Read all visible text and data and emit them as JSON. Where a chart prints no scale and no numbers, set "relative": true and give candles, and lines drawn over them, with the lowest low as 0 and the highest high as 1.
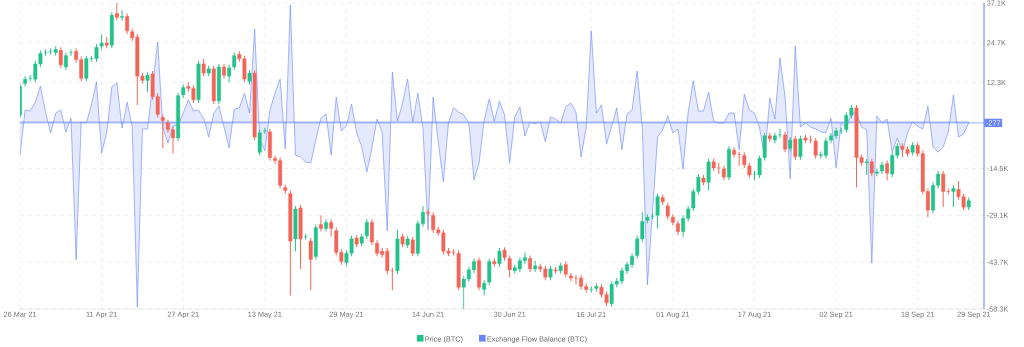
{
  "chart_data": {
    "type": "candlestick",
    "relative": true,
    "grid": true,
    "legend": "bottom",
    "x": [
      "2021-03-26",
      "2021-03-27",
      "2021-03-28",
      "2021-03-29",
      "2021-03-30",
      "2021-03-31",
      "2021-04-01",
      "2021-04-02",
      "2021-04-03",
      "2021-04-04",
      "2021-04-05",
      "2021-04-06",
      "2021-04-07",
      "2021-04-08",
      "2021-04-09",
      "2021-04-10",
      "2021-04-11",
      "2021-04-12",
      "2021-04-13",
      "2021-04-14",
      "2021-04-15",
      "2021-04-16",
      "2021-04-17",
      "2021-04-18",
      "2021-04-19",
      "2021-04-20",
      "2021-04-21",
      "2021-04-22",
      "2021-04-23",
      "2021-04-24",
      "2021-04-25",
      "2021-04-26",
      "2021-04-27",
      "2021-04-28",
      "2021-04-29",
      "2021-04-30",
      "2021-05-01",
      "2021-05-02",
      "2021-05-03",
      "2021-05-04",
      "2021-05-05",
      "2021-05-06",
      "2021-05-07",
      "2021-05-08",
      "2021-05-09",
      "2021-05-10",
      "2021-05-11",
      "2021-05-12",
      "2021-05-13",
      "2021-05-14",
      "2021-05-15",
      "2021-05-16",
      "2021-05-17",
      "2021-05-18",
      "2021-05-19",
      "2021-05-20",
      "2021-05-21",
      "2021-05-22",
      "2021-05-23",
      "2021-05-24",
      "2021-05-25",
      "2021-05-26",
      "2021-05-27",
      "2021-05-28",
      "2021-05-29",
      "2021-05-30",
      "2021-05-31",
      "2021-06-01",
      "2021-06-02",
      "2021-06-03",
      "2021-06-04",
      "2021-06-05",
      "2021-06-06",
      "2021-06-07",
      "2021-06-08",
      "2021-06-09",
      "2021-06-10",
      "2021-06-11",
      "2021-06-12",
      "2021-06-13",
      "2021-06-14",
      "2021-06-15",
      "2021-06-16",
      "2021-06-17",
      "2021-06-18",
      "2021-06-19",
      "2021-06-20",
      "2021-06-21",
      "2021-06-22",
      "2021-06-23",
      "2021-06-24",
      "2021-06-25",
      "2021-06-26",
      "2021-06-27",
      "2021-06-28",
      "2021-06-29",
      "2021-06-30",
      "2021-07-01",
      "2021-07-02",
      "2021-07-03",
      "2021-07-04",
      "2021-07-05",
      "2021-07-06",
      "2021-07-07",
      "2021-07-08",
      "2021-07-09",
      "2021-07-10",
      "2021-07-11",
      "2021-07-12",
      "2021-07-13",
      "2021-07-14",
      "2021-07-15",
      "2021-07-16",
      "2021-07-17",
      "2021-07-18",
      "2021-07-19",
      "2021-07-20",
      "2021-07-21",
      "2021-07-22",
      "2021-07-23",
      "2021-07-24",
      "2021-07-25",
      "2021-07-26",
      "2021-07-27",
      "2021-07-28",
      "2021-07-29",
      "2021-07-30",
      "2021-07-31",
      "2021-08-01",
      "2021-08-02",
      "2021-08-03",
      "2021-08-04",
      "2021-08-05",
      "2021-08-06",
      "2021-08-07",
      "2021-08-08",
      "2021-08-09",
      "2021-08-10",
      "2021-08-11",
      "2021-08-12",
      "2021-08-13",
      "2021-08-14",
      "2021-08-15",
      "2021-08-16",
      "2021-08-17",
      "2021-08-18",
      "2021-08-19",
      "2021-08-20",
      "2021-08-21",
      "2021-08-22",
      "2021-08-23",
      "2021-08-24",
      "2021-08-25",
      "2021-08-26",
      "2021-08-27",
      "2021-08-28",
      "2021-08-29",
      "2021-08-30",
      "2021-08-31",
      "2021-09-01",
      "2021-09-02",
      "2021-09-03",
      "2021-09-04",
      "2021-09-05",
      "2021-09-06",
      "2021-09-07",
      "2021-09-08",
      "2021-09-09",
      "2021-09-10",
      "2021-09-11",
      "2021-09-12",
      "2021-09-13",
      "2021-09-14",
      "2021-09-15",
      "2021-09-16",
      "2021-09-17",
      "2021-09-18",
      "2021-09-19",
      "2021-09-20",
      "2021-09-21",
      "2021-09-22",
      "2021-09-23",
      "2021-09-24",
      "2021-09-25",
      "2021-09-26",
      "2021-09-27",
      "2021-09-28"
    ],
    "xlim": [
      "2021-03-26",
      "2021-10-01"
    ],
    "xticks": [
      {
        "value": "2021-03-26",
        "label": "26 Mar 21"
      },
      {
        "value": "2021-04-11",
        "label": "11 Apr 21"
      },
      {
        "value": "2021-04-27",
        "label": "27 Apr 21"
      },
      {
        "value": "2021-05-13",
        "label": "13 May 21"
      },
      {
        "value": "2021-05-29",
        "label": "29 May 21"
      },
      {
        "value": "2021-06-14",
        "label": "14 Jun 21"
      },
      {
        "value": "2021-06-30",
        "label": "30 Jun 21"
      },
      {
        "value": "2021-07-16",
        "label": "16 Jul 21"
      },
      {
        "value": "2021-08-01",
        "label": "01 Aug 21"
      },
      {
        "value": "2021-08-17",
        "label": "17 Aug 21"
      },
      {
        "value": "2021-09-02",
        "label": "02 Sep 21"
      },
      {
        "value": "2021-09-18",
        "label": "18 Sep 21"
      },
      {
        "value": "2021-09-29",
        "label": "29 Sep 21"
      }
    ],
    "y2lim": [
      -58300,
      37100
    ],
    "y2ticks": [
      {
        "value": 37100,
        "label": "37.1K"
      },
      {
        "value": 24700,
        "label": "24.7K"
      },
      {
        "value": 12300,
        "label": "12.3K"
      },
      {
        "value": -14500,
        "label": "-14.5K"
      },
      {
        "value": -29100,
        "label": "-29.1K"
      },
      {
        "value": -43700,
        "label": "-43.7K"
      },
      {
        "value": -58300,
        "label": "-58.3K"
      }
    ],
    "ref_lines": [
      {
        "axis": "y2",
        "value": -277,
        "label": "-277",
        "color": "#6a86f8"
      }
    ],
    "series": [
      {
        "type": "candlestick",
        "name": "Price (BTC)",
        "color": "#25c28c",
        "ohlc": [
          [
            0.633,
            0.737,
            0.623,
            0.727
          ],
          [
            0.737,
            0.761,
            0.727,
            0.751
          ],
          [
            0.754,
            0.764,
            0.744,
            0.754
          ],
          [
            0.751,
            0.811,
            0.741,
            0.801
          ],
          [
            0.801,
            0.845,
            0.791,
            0.835
          ],
          [
            0.838,
            0.848,
            0.828,
            0.838
          ],
          [
            0.842,
            0.852,
            0.832,
            0.842
          ],
          [
            0.838,
            0.859,
            0.828,
            0.848
          ],
          [
            0.845,
            0.855,
            0.788,
            0.798
          ],
          [
            0.791,
            0.838,
            0.781,
            0.828
          ],
          [
            0.838,
            0.848,
            0.828,
            0.838
          ],
          [
            0.842,
            0.852,
            0.805,
            0.815
          ],
          [
            0.815,
            0.825,
            0.744,
            0.754
          ],
          [
            0.754,
            0.828,
            0.744,
            0.818
          ],
          [
            0.818,
            0.828,
            0.808,
            0.818
          ],
          [
            0.818,
            0.865,
            0.808,
            0.855
          ],
          [
            0.859,
            0.896,
            0.848,
            0.869
          ],
          [
            0.869,
            0.889,
            0.852,
            0.862
          ],
          [
            0.862,
            0.97,
            0.852,
            0.96
          ],
          [
            0.966,
            1,
            0.943,
            0.953
          ],
          [
            0.953,
            0.976,
            0.943,
            0.956
          ],
          [
            0.956,
            0.966,
            0.899,
            0.909
          ],
          [
            0.906,
            0.916,
            0.876,
            0.886
          ],
          [
            0.889,
            0.899,
            0.667,
            0.761
          ],
          [
            0.761,
            0.771,
            0.737,
            0.747
          ],
          [
            0.747,
            0.774,
            0.71,
            0.764
          ],
          [
            0.768,
            0.778,
            0.684,
            0.694
          ],
          [
            0.694,
            0.704,
            0.626,
            0.636
          ],
          [
            0.626,
            0.636,
            0.525,
            0.616
          ],
          [
            0.609,
            0.619,
            0.576,
            0.586
          ],
          [
            0.586,
            0.596,
            0.508,
            0.559
          ],
          [
            0.559,
            0.707,
            0.549,
            0.697
          ],
          [
            0.7,
            0.734,
            0.69,
            0.724
          ],
          [
            0.727,
            0.741,
            0.71,
            0.721
          ],
          [
            0.721,
            0.731,
            0.673,
            0.684
          ],
          [
            0.684,
            0.811,
            0.673,
            0.801
          ],
          [
            0.801,
            0.818,
            0.761,
            0.771
          ],
          [
            0.771,
            0.795,
            0.761,
            0.785
          ],
          [
            0.785,
            0.795,
            0.67,
            0.68
          ],
          [
            0.68,
            0.801,
            0.67,
            0.791
          ],
          [
            0.791,
            0.801,
            0.754,
            0.764
          ],
          [
            0.761,
            0.798,
            0.741,
            0.788
          ],
          [
            0.791,
            0.838,
            0.781,
            0.828
          ],
          [
            0.832,
            0.842,
            0.808,
            0.818
          ],
          [
            0.818,
            0.828,
            0.741,
            0.751
          ],
          [
            0.744,
            0.781,
            0.734,
            0.771
          ],
          [
            0.771,
            0.781,
            0.552,
            0.562
          ],
          [
            0.512,
            0.586,
            0.502,
            0.576
          ],
          [
            0.582,
            0.592,
            0.572,
            0.582
          ],
          [
            0.579,
            0.589,
            0.485,
            0.495
          ],
          [
            0.492,
            0.502,
            0.475,
            0.485
          ],
          [
            0.485,
            0.495,
            0.394,
            0.404
          ],
          [
            0.397,
            0.407,
            0.377,
            0.387
          ],
          [
            0.377,
            0.387,
            0.044,
            0.222
          ],
          [
            0.229,
            0.337,
            0.189,
            0.327
          ],
          [
            0.33,
            0.34,
            0.131,
            0.229
          ],
          [
            0.236,
            0.246,
            0.226,
            0.236
          ],
          [
            0.222,
            0.232,
            0.061,
            0.162
          ],
          [
            0.172,
            0.276,
            0.162,
            0.266
          ],
          [
            0.276,
            0.306,
            0.253,
            0.263
          ],
          [
            0.263,
            0.293,
            0.253,
            0.283
          ],
          [
            0.283,
            0.293,
            0.236,
            0.263
          ],
          [
            0.256,
            0.266,
            0.175,
            0.185
          ],
          [
            0.185,
            0.195,
            0.145,
            0.155
          ],
          [
            0.152,
            0.192,
            0.141,
            0.182
          ],
          [
            0.182,
            0.239,
            0.172,
            0.229
          ],
          [
            0.232,
            0.242,
            0.202,
            0.212
          ],
          [
            0.215,
            0.246,
            0.205,
            0.236
          ],
          [
            0.239,
            0.293,
            0.229,
            0.283
          ],
          [
            0.283,
            0.293,
            0.209,
            0.219
          ],
          [
            0.215,
            0.225,
            0.172,
            0.182
          ],
          [
            0.189,
            0.199,
            0.168,
            0.178
          ],
          [
            0.189,
            0.199,
            0.114,
            0.125
          ],
          [
            0.125,
            0.135,
            0.061,
            0.125
          ],
          [
            0.125,
            0.259,
            0.114,
            0.229
          ],
          [
            0.236,
            0.246,
            0.202,
            0.212
          ],
          [
            0.209,
            0.239,
            0.199,
            0.229
          ],
          [
            0.226,
            0.236,
            0.172,
            0.182
          ],
          [
            0.182,
            0.289,
            0.172,
            0.279
          ],
          [
            0.279,
            0.337,
            0.269,
            0.316
          ],
          [
            0.316,
            0.326,
            0.303,
            0.313
          ],
          [
            0.306,
            0.316,
            0.249,
            0.259
          ],
          [
            0.259,
            0.269,
            0.239,
            0.249
          ],
          [
            0.249,
            0.259,
            0.178,
            0.189
          ],
          [
            0.189,
            0.199,
            0.172,
            0.182
          ],
          [
            0.185,
            0.195,
            0.175,
            0.185
          ],
          [
            0.182,
            0.192,
            0.061,
            0.071
          ],
          [
            0.071,
            0.108,
            0,
            0.098
          ],
          [
            0.098,
            0.138,
            0.088,
            0.128
          ],
          [
            0.128,
            0.165,
            0.118,
            0.155
          ],
          [
            0.158,
            0.168,
            0.061,
            0.071
          ],
          [
            0.064,
            0.094,
            0.044,
            0.084
          ],
          [
            0.088,
            0.165,
            0.078,
            0.155
          ],
          [
            0.155,
            0.165,
            0.138,
            0.148
          ],
          [
            0.148,
            0.199,
            0.138,
            0.189
          ],
          [
            0.192,
            0.202,
            0.158,
            0.168
          ],
          [
            0.165,
            0.175,
            0.104,
            0.128
          ],
          [
            0.125,
            0.145,
            0.115,
            0.135
          ],
          [
            0.131,
            0.168,
            0.121,
            0.158
          ],
          [
            0.158,
            0.185,
            0.148,
            0.168
          ],
          [
            0.165,
            0.175,
            0.121,
            0.131
          ],
          [
            0.131,
            0.158,
            0.121,
            0.141
          ],
          [
            0.138,
            0.148,
            0.121,
            0.131
          ],
          [
            0.131,
            0.141,
            0.094,
            0.104
          ],
          [
            0.104,
            0.141,
            0.094,
            0.131
          ],
          [
            0.128,
            0.138,
            0.115,
            0.125
          ],
          [
            0.125,
            0.151,
            0.115,
            0.141
          ],
          [
            0.145,
            0.155,
            0.104,
            0.114
          ],
          [
            0.108,
            0.118,
            0.091,
            0.101
          ],
          [
            0.101,
            0.111,
            0.081,
            0.101
          ],
          [
            0.101,
            0.111,
            0.064,
            0.074
          ],
          [
            0.074,
            0.084,
            0.054,
            0.064
          ],
          [
            0.064,
            0.074,
            0.054,
            0.064
          ],
          [
            0.067,
            0.084,
            0.057,
            0.074
          ],
          [
            0.071,
            0.081,
            0.037,
            0.047
          ],
          [
            0.047,
            0.057,
            0.01,
            0.02
          ],
          [
            0.017,
            0.091,
            0.007,
            0.081
          ],
          [
            0.081,
            0.101,
            0.071,
            0.091
          ],
          [
            0.091,
            0.135,
            0.081,
            0.125
          ],
          [
            0.125,
            0.155,
            0.115,
            0.145
          ],
          [
            0.145,
            0.182,
            0.135,
            0.172
          ],
          [
            0.175,
            0.239,
            0.165,
            0.229
          ],
          [
            0.229,
            0.316,
            0.219,
            0.286
          ],
          [
            0.29,
            0.31,
            0.28,
            0.3
          ],
          [
            0.303,
            0.313,
            0.293,
            0.303
          ],
          [
            0.306,
            0.377,
            0.263,
            0.367
          ],
          [
            0.364,
            0.374,
            0.34,
            0.35
          ],
          [
            0.337,
            0.347,
            0.293,
            0.303
          ],
          [
            0.3,
            0.31,
            0.273,
            0.283
          ],
          [
            0.279,
            0.289,
            0.242,
            0.253
          ],
          [
            0.253,
            0.306,
            0.236,
            0.296
          ],
          [
            0.296,
            0.337,
            0.286,
            0.327
          ],
          [
            0.33,
            0.394,
            0.32,
            0.384
          ],
          [
            0.384,
            0.441,
            0.374,
            0.431
          ],
          [
            0.428,
            0.438,
            0.404,
            0.414
          ],
          [
            0.414,
            0.491,
            0.387,
            0.481
          ],
          [
            0.481,
            0.491,
            0.451,
            0.461
          ],
          [
            0.461,
            0.478,
            0.441,
            0.461
          ],
          [
            0.458,
            0.468,
            0.421,
            0.431
          ],
          [
            0.431,
            0.532,
            0.421,
            0.522
          ],
          [
            0.519,
            0.529,
            0.495,
            0.505
          ],
          [
            0.505,
            0.515,
            0.468,
            0.505
          ],
          [
            0.502,
            0.512,
            0.461,
            0.471
          ],
          [
            0.468,
            0.478,
            0.428,
            0.438
          ],
          [
            0.441,
            0.451,
            0.421,
            0.441
          ],
          [
            0.438,
            0.502,
            0.428,
            0.492
          ],
          [
            0.495,
            0.576,
            0.485,
            0.566
          ],
          [
            0.566,
            0.576,
            0.546,
            0.556
          ],
          [
            0.552,
            0.576,
            0.542,
            0.566
          ],
          [
            0.569,
            0.589,
            0.559,
            0.569
          ],
          [
            0.569,
            0.579,
            0.512,
            0.522
          ],
          [
            0.525,
            0.562,
            0.515,
            0.552
          ],
          [
            0.556,
            0.566,
            0.488,
            0.498
          ],
          [
            0.498,
            0.566,
            0.488,
            0.556
          ],
          [
            0.559,
            0.569,
            0.542,
            0.552
          ],
          [
            0.552,
            0.566,
            0.542,
            0.552
          ],
          [
            0.549,
            0.559,
            0.492,
            0.502
          ],
          [
            0.502,
            0.515,
            0.492,
            0.505
          ],
          [
            0.502,
            0.559,
            0.492,
            0.549
          ],
          [
            0.552,
            0.576,
            0.542,
            0.566
          ],
          [
            0.566,
            0.592,
            0.556,
            0.582
          ],
          [
            0.582,
            0.592,
            0.572,
            0.582
          ],
          [
            0.586,
            0.643,
            0.576,
            0.633
          ],
          [
            0.633,
            0.667,
            0.623,
            0.657
          ],
          [
            0.657,
            0.667,
            0.397,
            0.495
          ],
          [
            0.495,
            0.505,
            0.468,
            0.478
          ],
          [
            0.478,
            0.491,
            0.438,
            0.481
          ],
          [
            0.481,
            0.491,
            0.434,
            0.444
          ],
          [
            0.444,
            0.458,
            0.434,
            0.448
          ],
          [
            0.451,
            0.481,
            0.441,
            0.471
          ],
          [
            0.475,
            0.485,
            0.421,
            0.444
          ],
          [
            0.441,
            0.512,
            0.431,
            0.502
          ],
          [
            0.502,
            0.542,
            0.492,
            0.532
          ],
          [
            0.532,
            0.542,
            0.495,
            0.522
          ],
          [
            0.522,
            0.532,
            0.498,
            0.508
          ],
          [
            0.512,
            0.545,
            0.502,
            0.535
          ],
          [
            0.535,
            0.545,
            0.498,
            0.508
          ],
          [
            0.508,
            0.518,
            0.374,
            0.384
          ],
          [
            0.384,
            0.394,
            0.3,
            0.323
          ],
          [
            0.323,
            0.414,
            0.313,
            0.404
          ],
          [
            0.404,
            0.451,
            0.394,
            0.441
          ],
          [
            0.441,
            0.451,
            0.333,
            0.384
          ],
          [
            0.384,
            0.394,
            0.374,
            0.384
          ],
          [
            0.384,
            0.404,
            0.333,
            0.394
          ],
          [
            0.391,
            0.418,
            0.357,
            0.367
          ],
          [
            0.367,
            0.377,
            0.323,
            0.333
          ],
          [
            0.333,
            0.364,
            0.323,
            0.354
          ]
        ],
        "colors": [
          "#25c28c",
          "#25c28c",
          "#25c28c",
          "#25c28c",
          "#25c28c",
          "#25c28c",
          "#25c28c",
          "#25c28c",
          "#f2665a",
          "#25c28c",
          "#25c28c",
          "#f2665a",
          "#f2665a",
          "#25c28c",
          "#25c28c",
          "#25c28c",
          "#25c28c",
          "#f2665a",
          "#25c28c",
          "#f2665a",
          "#25c28c",
          "#f2665a",
          "#f2665a",
          "#f2665a",
          "#f2665a",
          "#25c28c",
          "#f2665a",
          "#f2665a",
          "#f2665a",
          "#f2665a",
          "#f2665a",
          "#25c28c",
          "#25c28c",
          "#f2665a",
          "#f2665a",
          "#25c28c",
          "#f2665a",
          "#25c28c",
          "#f2665a",
          "#25c28c",
          "#f2665a",
          "#25c28c",
          "#25c28c",
          "#f2665a",
          "#f2665a",
          "#25c28c",
          "#f2665a",
          "#25c28c",
          "#25c28c",
          "#f2665a",
          "#f2665a",
          "#f2665a",
          "#f2665a",
          "#f2665a",
          "#25c28c",
          "#f2665a",
          "#25c28c",
          "#f2665a",
          "#25c28c",
          "#f2665a",
          "#25c28c",
          "#f2665a",
          "#f2665a",
          "#f2665a",
          "#25c28c",
          "#25c28c",
          "#f2665a",
          "#25c28c",
          "#25c28c",
          "#f2665a",
          "#f2665a",
          "#f2665a",
          "#f2665a",
          "#f2665a",
          "#25c28c",
          "#f2665a",
          "#25c28c",
          "#f2665a",
          "#25c28c",
          "#25c28c",
          "#f2665a",
          "#f2665a",
          "#f2665a",
          "#f2665a",
          "#f2665a",
          "#f2665a",
          "#f2665a",
          "#25c28c",
          "#25c28c",
          "#25c28c",
          "#f2665a",
          "#25c28c",
          "#25c28c",
          "#f2665a",
          "#25c28c",
          "#f2665a",
          "#f2665a",
          "#25c28c",
          "#25c28c",
          "#25c28c",
          "#f2665a",
          "#25c28c",
          "#f2665a",
          "#f2665a",
          "#25c28c",
          "#f2665a",
          "#25c28c",
          "#f2665a",
          "#f2665a",
          "#f2665a",
          "#f2665a",
          "#f2665a",
          "#25c28c",
          "#25c28c",
          "#f2665a",
          "#f2665a",
          "#25c28c",
          "#25c28c",
          "#25c28c",
          "#25c28c",
          "#25c28c",
          "#25c28c",
          "#25c28c",
          "#25c28c",
          "#25c28c",
          "#25c28c",
          "#f2665a",
          "#f2665a",
          "#f2665a",
          "#f2665a",
          "#25c28c",
          "#25c28c",
          "#25c28c",
          "#25c28c",
          "#f2665a",
          "#25c28c",
          "#f2665a",
          "#f2665a",
          "#f2665a",
          "#25c28c",
          "#f2665a",
          "#f2665a",
          "#f2665a",
          "#f2665a",
          "#25c28c",
          "#25c28c",
          "#25c28c",
          "#f2665a",
          "#25c28c",
          "#25c28c",
          "#f2665a",
          "#25c28c",
          "#f2665a",
          "#25c28c",
          "#f2665a",
          "#f2665a",
          "#f2665a",
          "#25c28c",
          "#25c28c",
          "#25c28c",
          "#25c28c",
          "#25c28c",
          "#25c28c",
          "#25c28c",
          "#f2665a",
          "#f2665a",
          "#25c28c",
          "#f2665a",
          "#25c28c",
          "#25c28c",
          "#f2665a",
          "#25c28c",
          "#25c28c",
          "#f2665a",
          "#f2665a",
          "#25c28c",
          "#f2665a",
          "#f2665a",
          "#f2665a",
          "#25c28c",
          "#25c28c",
          "#f2665a",
          "#f2665a",
          "#25c28c",
          "#f2665a",
          "#f2665a",
          "#25c28c"
        ]
      },
      {
        "type": "area",
        "axis": "y2",
        "name": "Exchange Flow Balance (BTC)",
        "color": "#6a86f8",
        "values": [
          -10300,
          3700,
          3400,
          6200,
          11200,
          3100,
          -3400,
          2800,
          3700,
          -3100,
          1200,
          -43000,
          0,
          -300,
          5300,
          12500,
          -9700,
          -3400,
          10900,
          12200,
          -1900,
          6200,
          -1300,
          -57700,
          -2200,
          -2200,
          11500,
          24900,
          -1600,
          -6600,
          -1300,
          -900,
          2800,
          6900,
          3400,
          3700,
          1200,
          -4700,
          2800,
          5000,
          -1600,
          -8100,
          4000,
          4400,
          9000,
          2800,
          29000,
          -5600,
          -9000,
          3700,
          9000,
          13400,
          -8400,
          36500,
          -10300,
          -10900,
          -12500,
          -12800,
          -5600,
          1200,
          2500,
          -10300,
          7800,
          -2800,
          -1300,
          5600,
          -3400,
          -7800,
          -15600,
          -8100,
          900,
          -3100,
          -34000,
          15600,
          300,
          5900,
          13400,
          0,
          9000,
          -1900,
          -33700,
          7800,
          -6200,
          -18700,
          -300,
          4400,
          3100,
          2200,
          -300,
          -18100,
          -12800,
          600,
          7200,
          300,
          6500,
          2200,
          -12800,
          1600,
          4700,
          -4400,
          0,
          -600,
          0,
          -6200,
          1600,
          900,
          -300,
          4700,
          5900,
          3100,
          -10900,
          -1900,
          28400,
          2800,
          5300,
          -6900,
          -1300,
          4400,
          -8700,
          2500,
          3700,
          15900,
          -1600,
          -50800,
          -28400,
          -4700,
          -2500,
          1900,
          -3400,
          -2200,
          -14700,
          3100,
          12800,
          3400,
          3400,
          9300,
          300,
          -300,
          -300,
          2800,
          2800,
          -8700,
          8700,
          3700,
          2800,
          -1900,
          -11200,
          7500,
          900,
          20000,
          7800,
          -17800,
          23700,
          -1600,
          -300,
          -1600,
          -2200,
          -3100,
          -3400,
          1200,
          -14300,
          -300,
          -1900,
          2800,
          2800,
          -1600,
          -2500,
          -44000,
          1900,
          -300,
          900,
          -9400,
          -5000,
          -9400,
          -3400,
          0,
          -1300,
          -2200,
          5000,
          -7800,
          -9400,
          -7800,
          -3100,
          8400,
          -4700,
          -3700,
          -277
        ]
      }
    ]
  }
}
